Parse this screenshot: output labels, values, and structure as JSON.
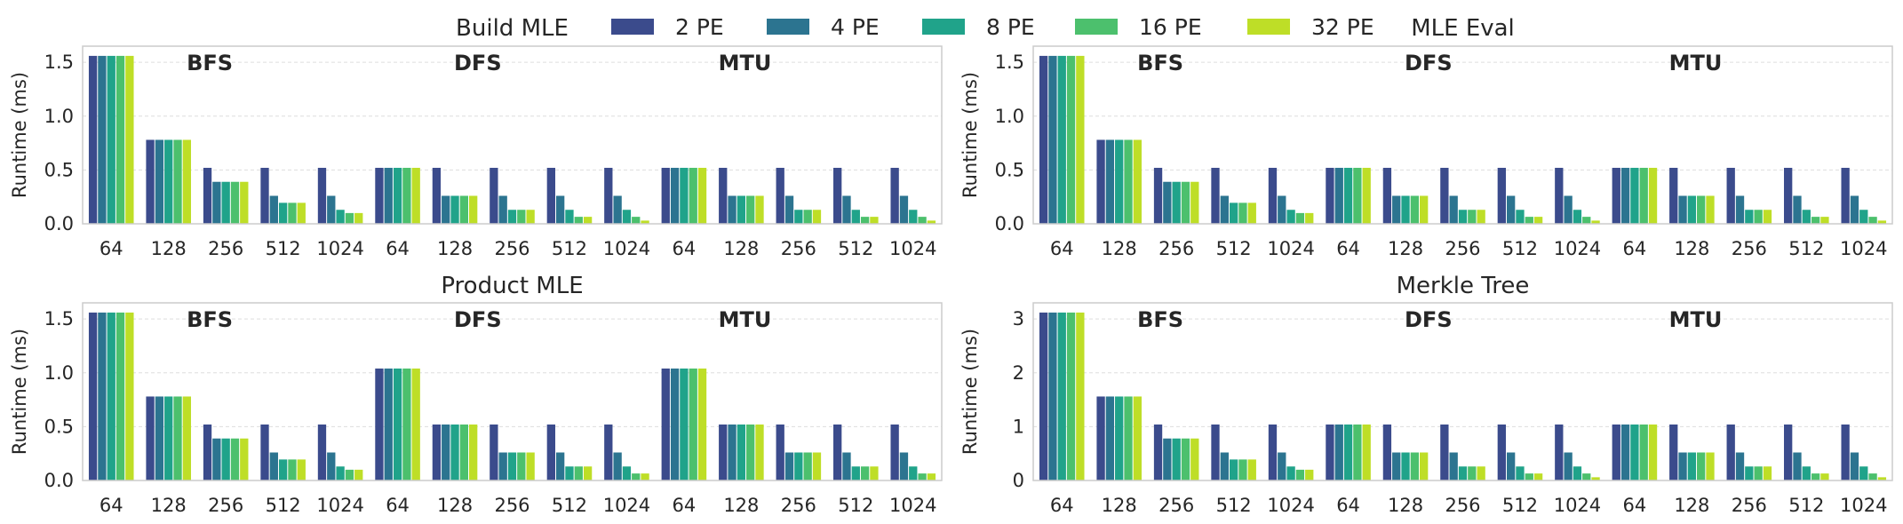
{
  "legend": {
    "items": [
      "2 PE",
      "4 PE",
      "8 PE",
      "16 PE",
      "32 PE"
    ],
    "colors": [
      "#3b4b8c",
      "#2c7490",
      "#20a38a",
      "#4cc06d",
      "#bede27"
    ]
  },
  "chart_data": [
    {
      "type": "bar",
      "title": "Build MLE",
      "ylabel": "Runtime (ms)",
      "ylim": [
        0,
        1.65
      ],
      "yticks": [
        0.0,
        0.5,
        1.0,
        1.5
      ],
      "ytick_labels": [
        "0.0",
        "0.5",
        "1.0",
        "1.5"
      ],
      "group_labels": [
        "BFS",
        "DFS",
        "MTU"
      ],
      "categories": [
        "64",
        "128",
        "256",
        "512",
        "1024",
        "64",
        "128",
        "256",
        "512",
        "1024",
        "64",
        "128",
        "256",
        "512",
        "1024"
      ],
      "series": [
        {
          "name": "2 PE",
          "values": [
            1.56,
            0.78,
            0.52,
            0.52,
            0.52,
            0.52,
            0.52,
            0.52,
            0.52,
            0.52,
            0.52,
            0.52,
            0.52,
            0.52,
            0.52
          ]
        },
        {
          "name": "4 PE",
          "values": [
            1.56,
            0.78,
            0.39,
            0.26,
            0.26,
            0.52,
            0.26,
            0.26,
            0.26,
            0.26,
            0.52,
            0.26,
            0.26,
            0.26,
            0.26
          ]
        },
        {
          "name": "8 PE",
          "values": [
            1.56,
            0.78,
            0.39,
            0.195,
            0.13,
            0.52,
            0.26,
            0.13,
            0.13,
            0.13,
            0.52,
            0.26,
            0.13,
            0.13,
            0.13
          ]
        },
        {
          "name": "16 PE",
          "values": [
            1.56,
            0.78,
            0.39,
            0.195,
            0.1,
            0.52,
            0.26,
            0.13,
            0.065,
            0.065,
            0.52,
            0.26,
            0.13,
            0.065,
            0.065
          ]
        },
        {
          "name": "32 PE",
          "values": [
            1.56,
            0.78,
            0.39,
            0.195,
            0.1,
            0.52,
            0.26,
            0.13,
            0.065,
            0.03,
            0.52,
            0.26,
            0.13,
            0.065,
            0.03
          ]
        }
      ]
    },
    {
      "type": "bar",
      "title": "MLE Eval",
      "ylabel": "Runtime (ms)",
      "ylim": [
        0,
        1.65
      ],
      "yticks": [
        0.0,
        0.5,
        1.0,
        1.5
      ],
      "ytick_labels": [
        "0.0",
        "0.5",
        "1.0",
        "1.5"
      ],
      "group_labels": [
        "BFS",
        "DFS",
        "MTU"
      ],
      "categories": [
        "64",
        "128",
        "256",
        "512",
        "1024",
        "64",
        "128",
        "256",
        "512",
        "1024",
        "64",
        "128",
        "256",
        "512",
        "1024"
      ],
      "series": [
        {
          "name": "2 PE",
          "values": [
            1.56,
            0.78,
            0.52,
            0.52,
            0.52,
            0.52,
            0.52,
            0.52,
            0.52,
            0.52,
            0.52,
            0.52,
            0.52,
            0.52,
            0.52
          ]
        },
        {
          "name": "4 PE",
          "values": [
            1.56,
            0.78,
            0.39,
            0.26,
            0.26,
            0.52,
            0.26,
            0.26,
            0.26,
            0.26,
            0.52,
            0.26,
            0.26,
            0.26,
            0.26
          ]
        },
        {
          "name": "8 PE",
          "values": [
            1.56,
            0.78,
            0.39,
            0.195,
            0.13,
            0.52,
            0.26,
            0.13,
            0.13,
            0.13,
            0.52,
            0.26,
            0.13,
            0.13,
            0.13
          ]
        },
        {
          "name": "16 PE",
          "values": [
            1.56,
            0.78,
            0.39,
            0.195,
            0.1,
            0.52,
            0.26,
            0.13,
            0.065,
            0.065,
            0.52,
            0.26,
            0.13,
            0.065,
            0.065
          ]
        },
        {
          "name": "32 PE",
          "values": [
            1.56,
            0.78,
            0.39,
            0.195,
            0.1,
            0.52,
            0.26,
            0.13,
            0.065,
            0.03,
            0.52,
            0.26,
            0.13,
            0.065,
            0.03
          ]
        }
      ]
    },
    {
      "type": "bar",
      "title": "Product MLE",
      "ylabel": "Runtime (ms)",
      "ylim": [
        0,
        1.65
      ],
      "yticks": [
        0.0,
        0.5,
        1.0,
        1.5
      ],
      "ytick_labels": [
        "0.0",
        "0.5",
        "1.0",
        "1.5"
      ],
      "group_labels": [
        "BFS",
        "DFS",
        "MTU"
      ],
      "categories": [
        "64",
        "128",
        "256",
        "512",
        "1024",
        "64",
        "128",
        "256",
        "512",
        "1024",
        "64",
        "128",
        "256",
        "512",
        "1024"
      ],
      "series": [
        {
          "name": "2 PE",
          "values": [
            1.56,
            0.78,
            0.52,
            0.52,
            0.52,
            1.04,
            0.52,
            0.52,
            0.52,
            0.52,
            1.04,
            0.52,
            0.52,
            0.52,
            0.52
          ]
        },
        {
          "name": "4 PE",
          "values": [
            1.56,
            0.78,
            0.39,
            0.26,
            0.26,
            1.04,
            0.52,
            0.26,
            0.26,
            0.26,
            1.04,
            0.52,
            0.26,
            0.26,
            0.26
          ]
        },
        {
          "name": "8 PE",
          "values": [
            1.56,
            0.78,
            0.39,
            0.195,
            0.13,
            1.04,
            0.52,
            0.26,
            0.13,
            0.13,
            1.04,
            0.52,
            0.26,
            0.13,
            0.13
          ]
        },
        {
          "name": "16 PE",
          "values": [
            1.56,
            0.78,
            0.39,
            0.195,
            0.1,
            1.04,
            0.52,
            0.26,
            0.13,
            0.065,
            1.04,
            0.52,
            0.26,
            0.13,
            0.065
          ]
        },
        {
          "name": "32 PE",
          "values": [
            1.56,
            0.78,
            0.39,
            0.195,
            0.1,
            1.04,
            0.52,
            0.26,
            0.13,
            0.065,
            1.04,
            0.52,
            0.26,
            0.13,
            0.065
          ]
        }
      ]
    },
    {
      "type": "bar",
      "title": "Merkle Tree",
      "ylabel": "Runtime (ms)",
      "ylim": [
        0,
        3.3
      ],
      "yticks": [
        0,
        1,
        2,
        3
      ],
      "ytick_labels": [
        "0",
        "1",
        "2",
        "3"
      ],
      "group_labels": [
        "BFS",
        "DFS",
        "MTU"
      ],
      "categories": [
        "64",
        "128",
        "256",
        "512",
        "1024",
        "64",
        "128",
        "256",
        "512",
        "1024",
        "64",
        "128",
        "256",
        "512",
        "1024"
      ],
      "series": [
        {
          "name": "2 PE",
          "values": [
            3.12,
            1.56,
            1.04,
            1.04,
            1.04,
            1.04,
            1.04,
            1.04,
            1.04,
            1.04,
            1.04,
            1.04,
            1.04,
            1.04,
            1.04
          ]
        },
        {
          "name": "4 PE",
          "values": [
            3.12,
            1.56,
            0.78,
            0.52,
            0.52,
            1.04,
            0.52,
            0.52,
            0.52,
            0.52,
            1.04,
            0.52,
            0.52,
            0.52,
            0.52
          ]
        },
        {
          "name": "8 PE",
          "values": [
            3.12,
            1.56,
            0.78,
            0.39,
            0.26,
            1.04,
            0.52,
            0.26,
            0.26,
            0.26,
            1.04,
            0.52,
            0.26,
            0.26,
            0.26
          ]
        },
        {
          "name": "16 PE",
          "values": [
            3.12,
            1.56,
            0.78,
            0.39,
            0.2,
            1.04,
            0.52,
            0.26,
            0.13,
            0.13,
            1.04,
            0.52,
            0.26,
            0.13,
            0.13
          ]
        },
        {
          "name": "32 PE",
          "values": [
            3.12,
            1.56,
            0.78,
            0.39,
            0.2,
            1.04,
            0.52,
            0.26,
            0.13,
            0.06,
            1.04,
            0.52,
            0.26,
            0.13,
            0.06
          ]
        }
      ]
    }
  ]
}
